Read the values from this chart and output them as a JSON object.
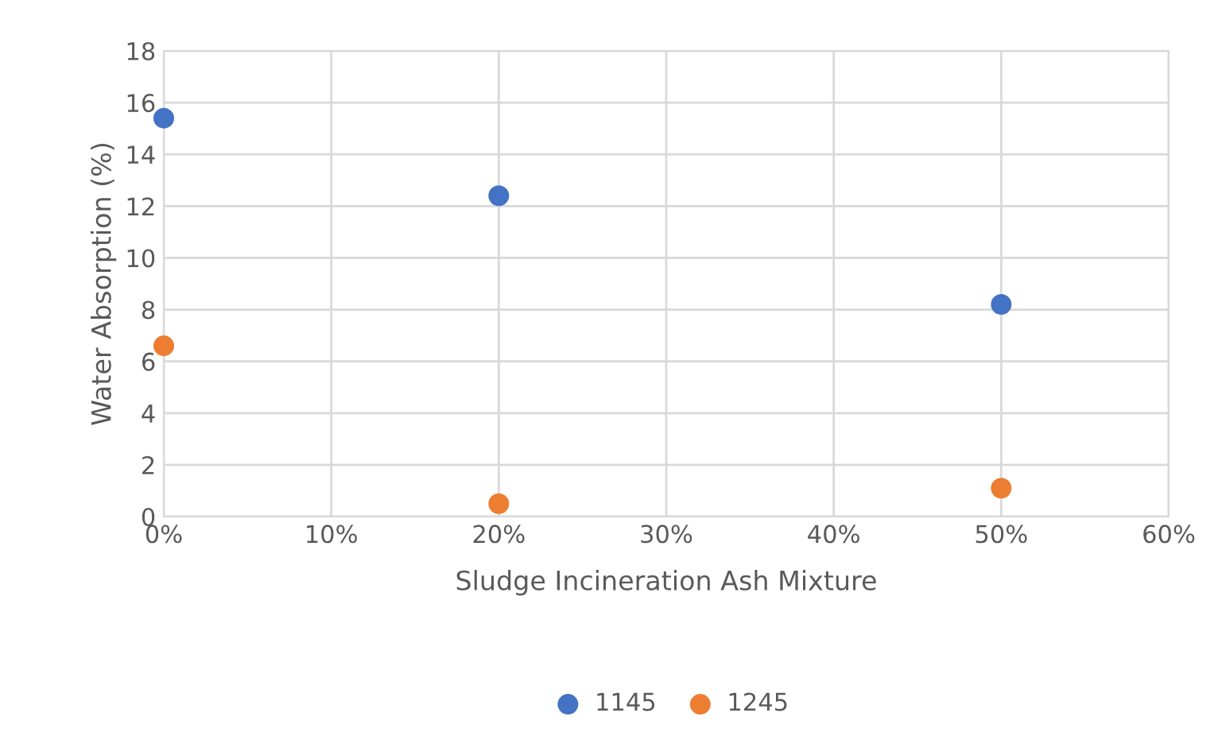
{
  "chart_data": {
    "type": "scatter",
    "xlabel": "Sludge Incineration Ash Mixture",
    "ylabel": "Water Absorption (%)",
    "x": [
      0,
      20,
      50
    ],
    "series": [
      {
        "name": "1145",
        "color": "#4472c4",
        "values": [
          15.4,
          12.4,
          8.2
        ]
      },
      {
        "name": "1245",
        "color": "#ed7d31",
        "values": [
          6.6,
          0.5,
          1.1
        ]
      }
    ],
    "xlim": [
      0,
      60
    ],
    "xticks": [
      {
        "value": 0,
        "label": "0%"
      },
      {
        "value": 10,
        "label": "10%"
      },
      {
        "value": 20,
        "label": "20%"
      },
      {
        "value": 30,
        "label": "30%"
      },
      {
        "value": 40,
        "label": "40%"
      },
      {
        "value": 50,
        "label": "50%"
      },
      {
        "value": 60,
        "label": "60%"
      }
    ],
    "ylim": [
      0,
      18
    ],
    "yticks": [
      0,
      2,
      4,
      6,
      8,
      10,
      12,
      14,
      16,
      18
    ],
    "grid": true,
    "legend": "bottom",
    "marker": "circle"
  }
}
